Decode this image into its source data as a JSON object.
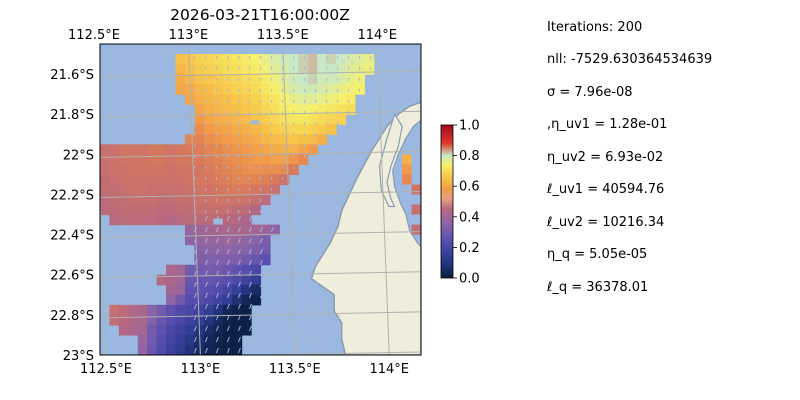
{
  "chart_data": {
    "type": "heatmap",
    "title": "2026-03-21T16:00:00Z",
    "xlabel": "",
    "ylabel": "",
    "xlim": [
      112.5,
      114.2
    ],
    "ylim": [
      -23.0,
      -21.45
    ],
    "x_ticks": [
      {
        "value": 112.5,
        "label": "112.5°E"
      },
      {
        "value": 113.0,
        "label": "113°E"
      },
      {
        "value": 113.5,
        "label": "113.5°E"
      },
      {
        "value": 114.0,
        "label": "114°E"
      }
    ],
    "y_ticks": [
      {
        "value": -21.6,
        "label": "21.6°S"
      },
      {
        "value": -21.8,
        "label": "21.8°S"
      },
      {
        "value": -22.0,
        "label": "22°S"
      },
      {
        "value": -22.2,
        "label": "22.2°S"
      },
      {
        "value": -22.4,
        "label": "22.4°S"
      },
      {
        "value": -22.6,
        "label": "22.6°S"
      },
      {
        "value": -22.8,
        "label": "22.8°S"
      },
      {
        "value": -23.0,
        "label": "23°S"
      }
    ],
    "grid": true,
    "colorbar": {
      "range": [
        0,
        1
      ],
      "ticks": [
        {
          "value": 0.0,
          "label": "0.0"
        },
        {
          "value": 0.2,
          "label": "0.2"
        },
        {
          "value": 0.4,
          "label": "0.4"
        },
        {
          "value": 0.6,
          "label": "0.6"
        },
        {
          "value": 0.8,
          "label": "0.8"
        },
        {
          "value": 1.0,
          "label": "1.0"
        }
      ],
      "colormap": [
        "#0a1e40",
        "#2b3a8f",
        "#5a4fb0",
        "#8a64a8",
        "#b8687f",
        "#d97a5a",
        "#f29a4a",
        "#f7c64a",
        "#f7f06a",
        "#c8e8c8",
        "#e03a2a",
        "#9e0a1e"
      ]
    },
    "colors": {
      "water": "#9ab8e0",
      "land": "#efeddc",
      "coast": "#8a9ab0",
      "grid": "#b0b0b0",
      "arrow": "#a9b6d4"
    },
    "cell_size_deg": 0.05,
    "field_rows": [
      {
        "lat": -21.525,
        "lon_start": 112.925,
        "values": [
          0.65,
          0.66,
          0.68,
          0.69,
          0.7,
          0.71,
          0.72,
          0.73,
          0.74,
          0.76,
          0.78,
          0.79,
          0.8,
          0.81,
          0.82,
          0.8,
          0.81,
          0.8,
          0.78,
          0.77,
          0.76
        ]
      },
      {
        "lat": -21.575,
        "lon_start": 112.925,
        "values": [
          0.63,
          0.65,
          0.67,
          0.68,
          0.69,
          0.7,
          0.71,
          0.72,
          0.73,
          0.75,
          0.77,
          0.78,
          0.8,
          0.81,
          0.82,
          0.8,
          0.8,
          0.79,
          0.77,
          0.76,
          0.75
        ]
      },
      {
        "lat": -21.625,
        "lon_start": 112.925,
        "values": [
          0.61,
          0.63,
          0.65,
          0.66,
          0.67,
          0.68,
          0.69,
          0.7,
          0.71,
          0.73,
          0.75,
          0.77,
          0.79,
          0.8,
          0.81,
          0.79,
          0.79,
          0.78,
          0.76,
          0.75
        ]
      },
      {
        "lat": -21.675,
        "lon_start": 112.925,
        "values": [
          0.6,
          0.61,
          0.63,
          0.64,
          0.66,
          0.67,
          0.68,
          0.69,
          0.7,
          0.72,
          0.74,
          0.76,
          0.78,
          0.79,
          0.79,
          0.78,
          0.77,
          0.76,
          0.75,
          0.74
        ]
      },
      {
        "lat": -21.725,
        "lon_start": 112.975,
        "values": [
          0.6,
          0.62,
          0.63,
          0.64,
          0.65,
          0.66,
          0.67,
          0.68,
          0.7,
          0.72,
          0.74,
          0.76,
          0.77,
          0.77,
          0.76,
          0.75,
          0.74,
          0.73
        ]
      },
      {
        "lat": -21.775,
        "lon_start": 113.025,
        "values": [
          0.6,
          0.62,
          0.63,
          0.64,
          0.65,
          0.66,
          0.67,
          0.69,
          0.71,
          0.73,
          0.74,
          0.75,
          0.74,
          0.73,
          0.72,
          0.71,
          0.7
        ]
      },
      {
        "lat": -21.825,
        "lon_start": 113.025,
        "values": [
          0.58,
          0.6,
          0.61,
          0.62,
          0.63,
          0.64,
          0.66,
          0.67,
          0.69,
          0.71,
          0.72,
          0.72,
          0.71,
          0.7,
          0.69,
          0.68
        ]
      },
      {
        "lat": -21.875,
        "lon_start": 113.025,
        "values": [
          0.56,
          0.58,
          0.59,
          0.6,
          0.61,
          0.62,
          0.63,
          0.65,
          0.67,
          0.68,
          0.69,
          0.69,
          0.68,
          0.67,
          0.65
        ]
      },
      {
        "lat": -21.925,
        "lon_start": 112.975,
        "values": [
          0.54,
          0.54,
          0.56,
          0.57,
          0.58,
          0.59,
          0.6,
          0.61,
          0.63,
          0.64,
          0.65,
          0.66,
          0.65,
          0.64,
          0.62
        ]
      },
      {
        "lat": -21.975,
        "lon_start": 112.525,
        "values": [
          0.48,
          0.49,
          0.5,
          0.5,
          0.5,
          0.51,
          0.51,
          0.5,
          0.51,
          0.52,
          0.53,
          0.54,
          0.55,
          0.56,
          0.57,
          0.58,
          0.59,
          0.6,
          0.61,
          0.62,
          0.62,
          0.6,
          0.58
        ]
      },
      {
        "lat": -22.025,
        "lon_start": 112.525,
        "values": [
          0.48,
          0.49,
          0.5,
          0.5,
          0.5,
          0.51,
          0.51,
          0.5,
          0.51,
          0.51,
          0.52,
          0.53,
          0.54,
          0.55,
          0.56,
          0.57,
          0.58,
          0.58,
          0.59,
          0.59,
          0.57,
          0.55
        ]
      },
      {
        "lat": -22.075,
        "lon_start": 112.525,
        "values": [
          0.48,
          0.49,
          0.49,
          0.5,
          0.5,
          0.5,
          0.5,
          0.49,
          0.5,
          0.5,
          0.51,
          0.52,
          0.53,
          0.54,
          0.55,
          0.56,
          0.56,
          0.56,
          0.56,
          0.55,
          0.52
        ]
      },
      {
        "lat": -22.125,
        "lon_start": 112.525,
        "values": [
          0.47,
          0.48,
          0.49,
          0.49,
          0.49,
          0.49,
          0.49,
          0.49,
          0.49,
          0.5,
          0.51,
          0.51,
          0.52,
          0.53,
          0.54,
          0.54,
          0.54,
          0.53,
          0.52,
          0.49
        ]
      },
      {
        "lat": -22.175,
        "lon_start": 112.525,
        "values": [
          0.47,
          0.47,
          0.48,
          0.49,
          0.49,
          0.48,
          0.48,
          0.48,
          0.48,
          0.49,
          0.5,
          0.5,
          0.51,
          0.52,
          0.52,
          0.52,
          0.51,
          0.5,
          0.48
        ]
      },
      {
        "lat": -22.225,
        "lon_start": 112.525,
        "values": [
          0.46,
          0.47,
          0.47,
          0.48,
          0.48,
          0.48,
          0.47,
          0.47,
          0.48,
          0.48,
          0.49,
          0.49,
          0.5,
          0.5,
          0.5,
          0.49,
          0.48,
          0.46
        ]
      },
      {
        "lat": -22.275,
        "lon_start": 112.525,
        "values": [
          0.46,
          0.46,
          0.47,
          0.47,
          0.47,
          0.47,
          0.46,
          0.46,
          0.47,
          0.47,
          0.48,
          0.48,
          0.48,
          0.48,
          0.47,
          0.46,
          0.44
        ]
      },
      {
        "lat": -22.325,
        "lon_start": 112.575,
        "values": [
          0.45,
          0.46,
          0.46,
          0.46,
          0.46,
          0.45,
          0.44,
          0.45,
          0.46,
          0.46,
          0.46,
          0.46,
          0.45,
          0.44,
          0.42
        ]
      },
      {
        "lat": -22.375,
        "lon_start": 112.975,
        "values": [
          0.38,
          0.39,
          0.4,
          0.41,
          0.42,
          0.42,
          0.41,
          0.4,
          0.39,
          0.36
        ]
      },
      {
        "lat": -22.425,
        "lon_start": 112.975,
        "values": [
          0.36,
          0.37,
          0.38,
          0.38,
          0.39,
          0.38,
          0.37,
          0.35,
          0.32
        ]
      },
      {
        "lat": -22.475,
        "lon_start": 113.025,
        "values": [
          0.34,
          0.35,
          0.36,
          0.36,
          0.35,
          0.34,
          0.32,
          0.3
        ]
      },
      {
        "lat": -22.525,
        "lon_start": 113.025,
        "values": [
          0.32,
          0.33,
          0.33,
          0.33,
          0.32,
          0.3,
          0.28,
          0.25
        ]
      },
      {
        "lat": -22.575,
        "lon_start": 112.875,
        "values": [
          0.42,
          0.4,
          0.3,
          0.3,
          0.31,
          0.3,
          0.29,
          0.27,
          0.24,
          0.2
        ]
      },
      {
        "lat": -22.625,
        "lon_start": 112.825,
        "values": [
          0.44,
          0.42,
          0.4,
          0.28,
          0.28,
          0.28,
          0.27,
          0.25,
          0.22,
          0.18,
          0.14
        ]
      },
      {
        "lat": -22.675,
        "lon_start": 112.875,
        "values": [
          0.4,
          0.38,
          0.26,
          0.26,
          0.25,
          0.23,
          0.2,
          0.15,
          0.1,
          0.06
        ]
      },
      {
        "lat": -22.725,
        "lon_start": 112.875,
        "values": [
          0.36,
          0.3,
          0.24,
          0.23,
          0.21,
          0.18,
          0.14,
          0.08,
          0.04,
          0.02
        ]
      },
      {
        "lat": -22.775,
        "lon_start": 112.575,
        "values": [
          0.48,
          0.46,
          0.44,
          0.42,
          0.35,
          0.3,
          0.26,
          0.22,
          0.2,
          0.18,
          0.14,
          0.09,
          0.04,
          0.02,
          0.01
        ]
      },
      {
        "lat": -22.825,
        "lon_start": 112.575,
        "values": [
          0.47,
          0.45,
          0.43,
          0.41,
          0.34,
          0.28,
          0.24,
          0.2,
          0.17,
          0.14,
          0.1,
          0.05,
          0.02,
          0.01,
          0.01
        ]
      },
      {
        "lat": -22.875,
        "lon_start": 112.625,
        "values": [
          0.44,
          0.42,
          0.4,
          0.3,
          0.26,
          0.21,
          0.17,
          0.14,
          0.1,
          0.06,
          0.03,
          0.01,
          0.01,
          0.01
        ]
      },
      {
        "lat": -22.925,
        "lon_start": 112.725,
        "values": [
          0.38,
          0.3,
          0.24,
          0.19,
          0.15,
          0.11,
          0.07,
          0.04,
          0.02,
          0.01,
          0.01
        ]
      },
      {
        "lat": -22.975,
        "lon_start": 112.725,
        "values": [
          0.36,
          0.28,
          0.22,
          0.17,
          0.13,
          0.09,
          0.05,
          0.03,
          0.02,
          0.01,
          0.01
        ]
      }
    ],
    "water_islands": [
      {
        "lat": -22.32,
        "lon": 113.1,
        "w": 0.05,
        "h": 0.03
      },
      {
        "lat": -21.83,
        "lon": 113.3,
        "w": 0.04,
        "h": 0.02
      }
    ],
    "land_polygon": [
      [
        114.2,
        -21.74
      ],
      [
        114.14,
        -21.76
      ],
      [
        114.08,
        -21.8
      ],
      [
        114.02,
        -21.86
      ],
      [
        113.98,
        -21.92
      ],
      [
        113.94,
        -21.98
      ],
      [
        113.9,
        -22.05
      ],
      [
        113.86,
        -22.12
      ],
      [
        113.82,
        -22.2
      ],
      [
        113.78,
        -22.28
      ],
      [
        113.76,
        -22.36
      ],
      [
        113.72,
        -22.44
      ],
      [
        113.68,
        -22.5
      ],
      [
        113.64,
        -22.56
      ],
      [
        113.62,
        -22.62
      ],
      [
        113.68,
        -22.66
      ],
      [
        113.74,
        -22.7
      ],
      [
        113.74,
        -22.78
      ],
      [
        113.78,
        -22.84
      ],
      [
        113.78,
        -22.92
      ],
      [
        113.8,
        -23.0
      ],
      [
        114.2,
        -23.0
      ]
    ],
    "gulf_polygon": [
      [
        114.16,
        -21.86
      ],
      [
        114.12,
        -21.92
      ],
      [
        114.08,
        -22.0
      ],
      [
        114.05,
        -22.08
      ],
      [
        114.06,
        -22.16
      ],
      [
        114.09,
        -22.24
      ],
      [
        114.12,
        -22.3
      ],
      [
        114.14,
        -22.38
      ],
      [
        114.18,
        -22.44
      ],
      [
        114.2,
        -22.46
      ],
      [
        114.2,
        -21.83
      ]
    ],
    "gulf_cells": [
      {
        "lat": -22.025,
        "lon": 114.125,
        "v": 0.62
      },
      {
        "lat": -22.075,
        "lon": 114.125,
        "v": 0.58
      },
      {
        "lat": -22.125,
        "lon": 114.125,
        "v": 0.55
      },
      {
        "lat": -22.175,
        "lon": 114.175,
        "v": 0.5
      },
      {
        "lat": -22.275,
        "lon": 114.175,
        "v": 0.48
      },
      {
        "lat": -22.375,
        "lon": 114.175,
        "v": 0.47
      }
    ],
    "peninsula_polygon": [
      [
        114.06,
        -21.8
      ],
      [
        114.1,
        -21.86
      ],
      [
        114.08,
        -21.96
      ],
      [
        114.04,
        -22.06
      ],
      [
        114.02,
        -22.14
      ],
      [
        114.04,
        -22.22
      ],
      [
        114.06,
        -22.26
      ],
      [
        114.03,
        -22.26
      ],
      [
        113.99,
        -22.18
      ],
      [
        113.98,
        -22.06
      ],
      [
        114.02,
        -21.92
      ]
    ]
  },
  "params": [
    "Iterations: 200",
    "nll: -7529.630364534639",
    "σ = 7.96e-08",
    ",η_uv1 = 1.28e-01",
    "η_uv2 = 6.93e-02",
    "ℓ_uv1 = 40594.76",
    "ℓ_uv2 = 10216.34",
    "η_q = 5.05e-05",
    "ℓ_q = 36378.01"
  ]
}
